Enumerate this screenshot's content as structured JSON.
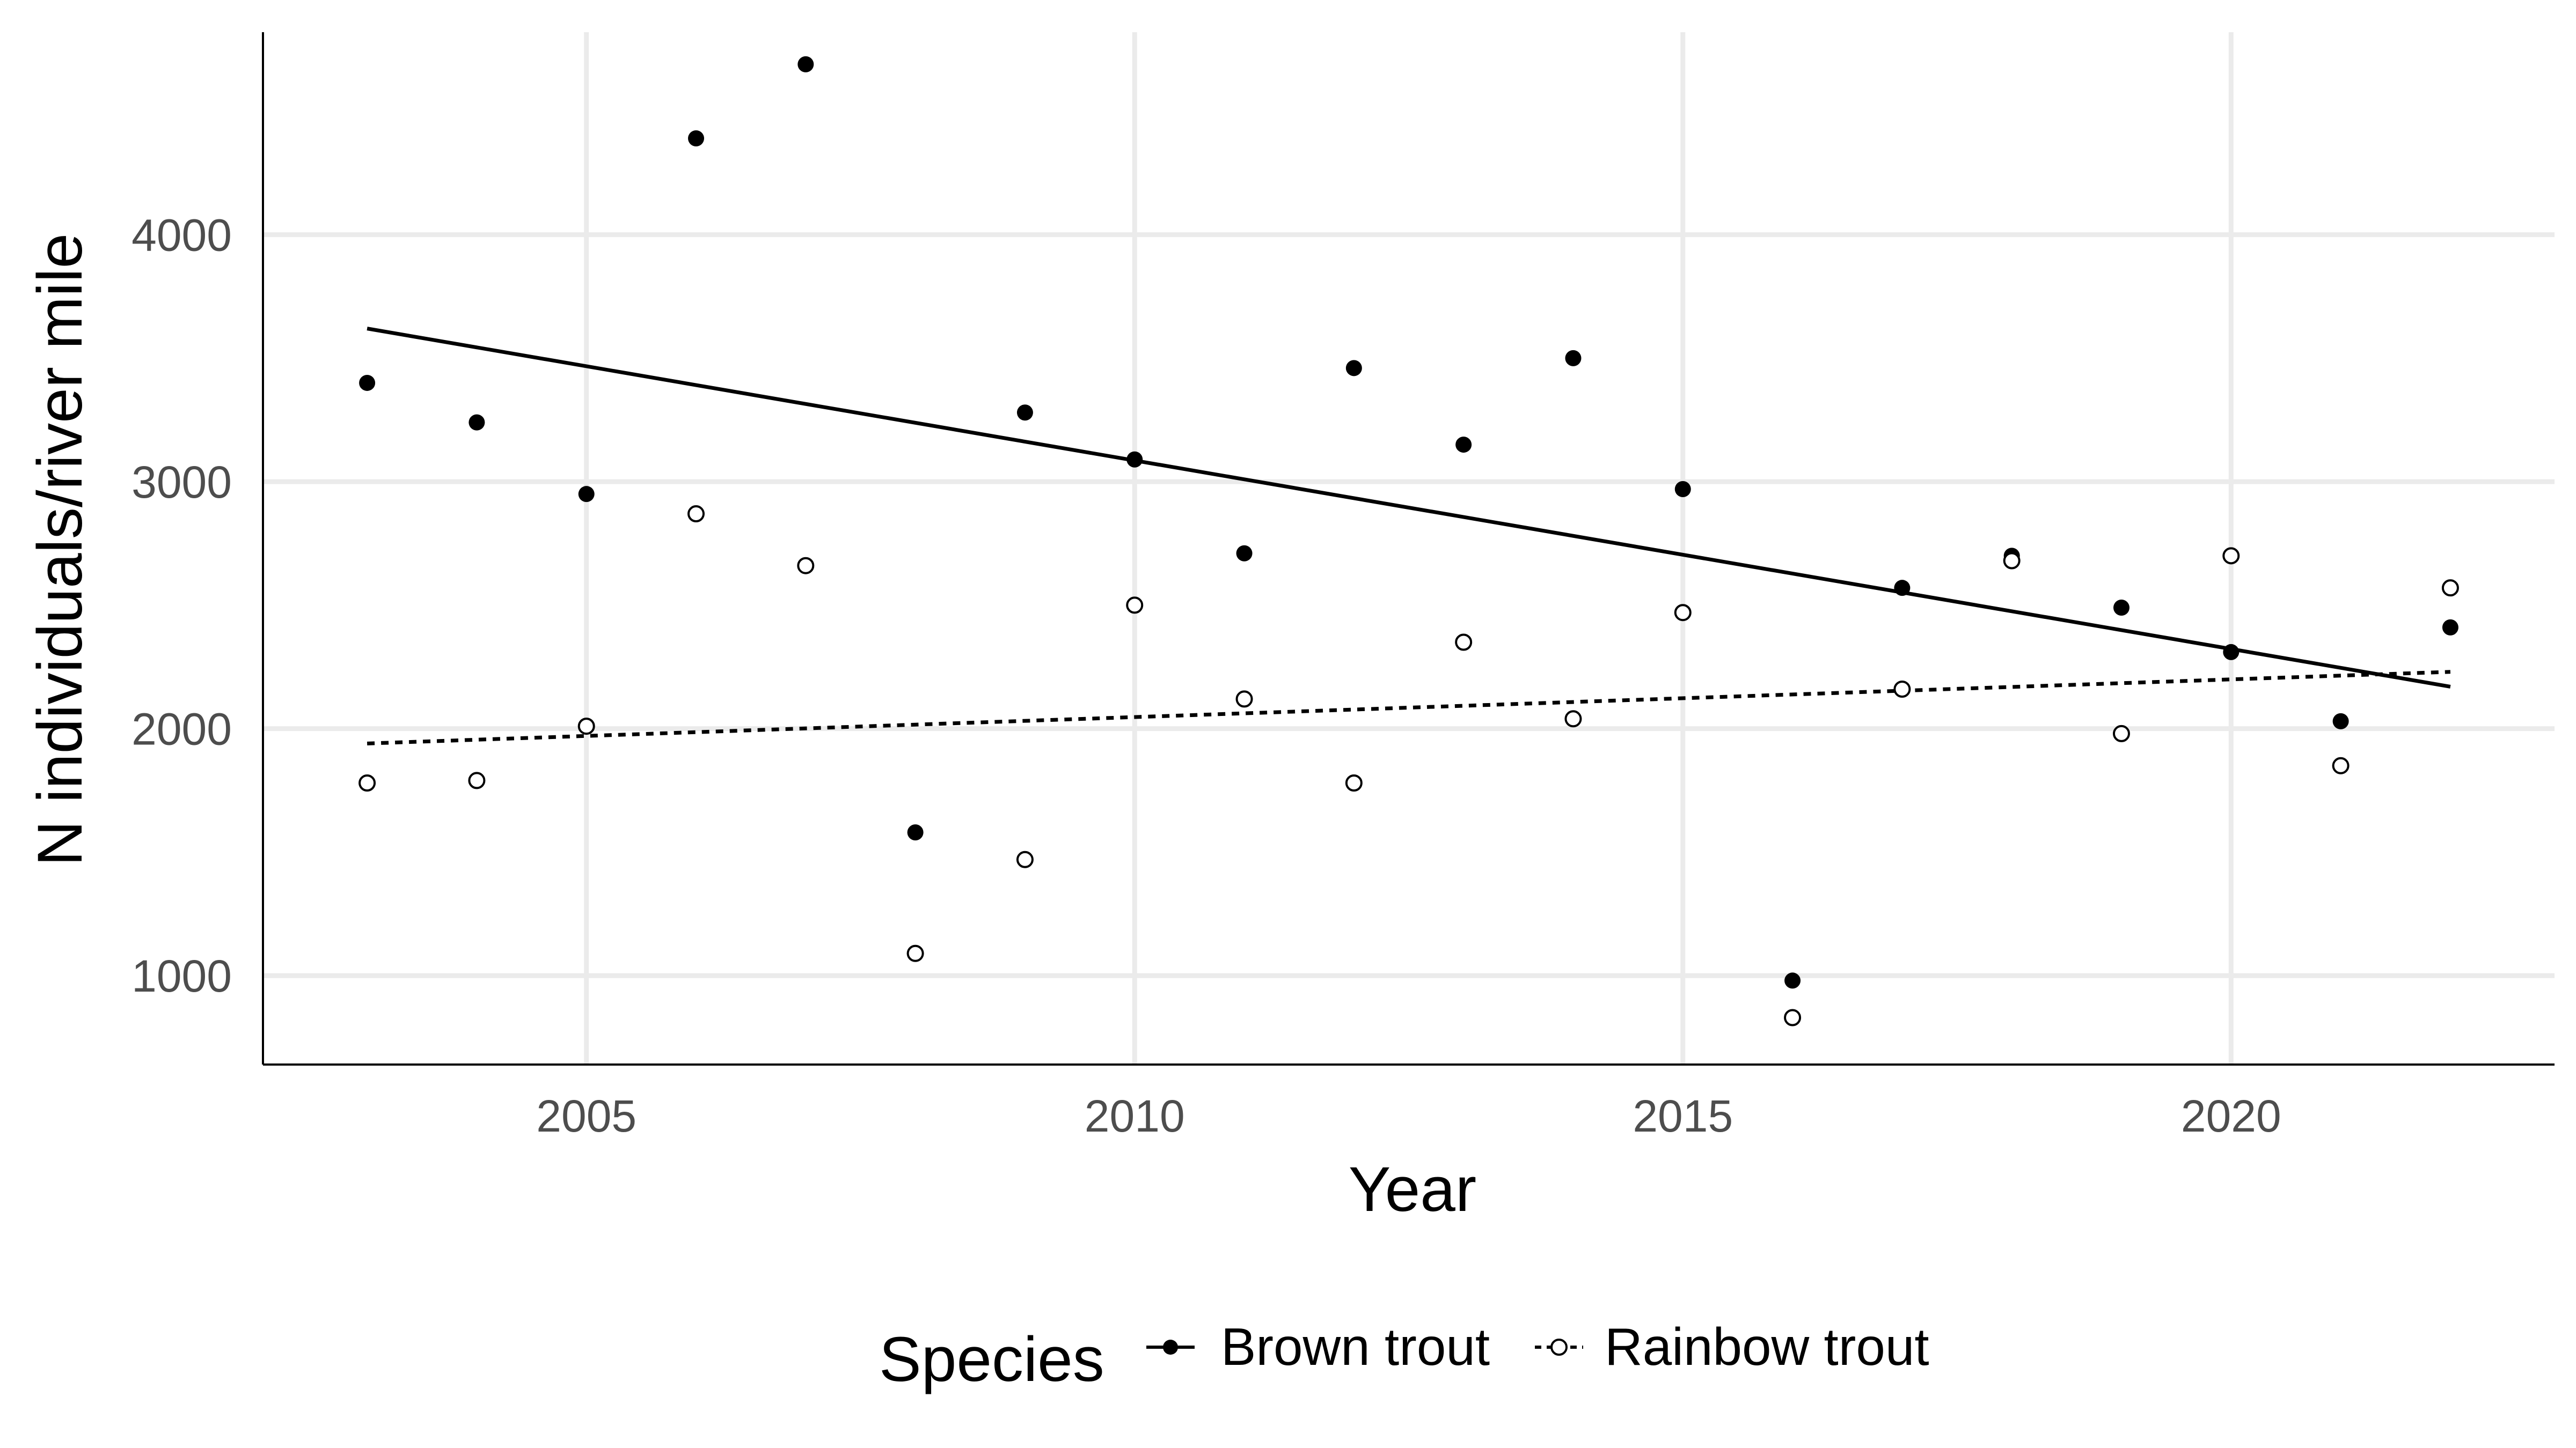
{
  "chart_data": {
    "type": "scatter",
    "title": "",
    "xlabel": "Year",
    "ylabel": "N individuals/river mile",
    "xlim": [
      2002.05,
      2022.95
    ],
    "ylim": [
      640,
      4820
    ],
    "x_ticks": [
      2005,
      2010,
      2015,
      2020
    ],
    "y_ticks": [
      1000,
      2000,
      3000,
      4000
    ],
    "grid": "major",
    "legend_position": "bottom",
    "legend": {
      "title": "Species",
      "entries": [
        "Brown trout",
        "Rainbow trout"
      ]
    },
    "series": [
      {
        "name": "Brown trout",
        "marker": "filled-circle",
        "trend_line": "solid",
        "trend": {
          "x": [
            2003,
            2022
          ],
          "y": [
            3620,
            2170
          ]
        },
        "x": [
          2003,
          2004,
          2005,
          2006,
          2007,
          2008,
          2009,
          2010,
          2011,
          2012,
          2013,
          2014,
          2015,
          2016,
          2017,
          2018,
          2019,
          2020,
          2021,
          2022
        ],
        "y": [
          3400,
          3240,
          2950,
          4390,
          4690,
          1580,
          3280,
          3090,
          2710,
          3460,
          3150,
          3500,
          2970,
          980,
          2570,
          2700,
          2490,
          2310,
          2030,
          2410
        ]
      },
      {
        "name": "Rainbow trout",
        "marker": "open-circle",
        "trend_line": "dotted",
        "trend": {
          "x": [
            2003,
            2022
          ],
          "y": [
            1940,
            2230
          ]
        },
        "x": [
          2003,
          2004,
          2005,
          2006,
          2007,
          2008,
          2009,
          2010,
          2011,
          2012,
          2013,
          2014,
          2015,
          2016,
          2017,
          2018,
          2019,
          2020,
          2021,
          2022
        ],
        "y": [
          1780,
          1790,
          2010,
          2870,
          2660,
          1090,
          1470,
          2500,
          2120,
          1780,
          2350,
          2040,
          2470,
          830,
          2160,
          2680,
          1980,
          2700,
          1850,
          2570
        ]
      }
    ]
  }
}
